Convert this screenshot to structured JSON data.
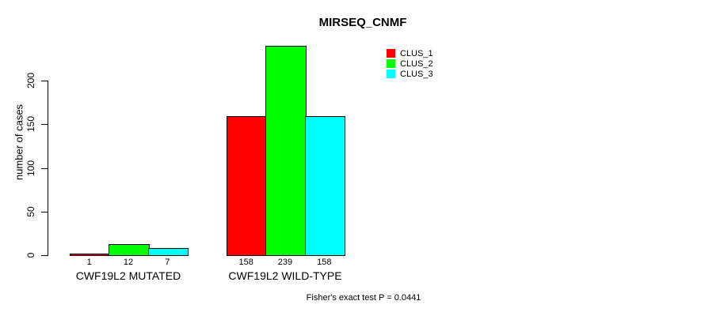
{
  "chart_data": {
    "type": "bar",
    "title": "MIRSEQ_CNMF",
    "xlabel": "",
    "ylabel": "number of cases",
    "categories": [
      "CWF19L2 MUTATED",
      "CWF19L2 WILD-TYPE"
    ],
    "series": [
      {
        "name": "CLUS_1",
        "color": "#ff0000",
        "values": [
          1,
          158
        ]
      },
      {
        "name": "CLUS_2",
        "color": "#00ff00",
        "values": [
          12,
          239
        ]
      },
      {
        "name": "CLUS_3",
        "color": "#00ffff",
        "values": [
          7,
          158
        ]
      }
    ],
    "bar_value_labels": [
      [
        1,
        12,
        7
      ],
      [
        158,
        239,
        158
      ]
    ],
    "yticks": [
      0,
      50,
      100,
      150,
      200
    ],
    "ylim": [
      0,
      245
    ],
    "grid": false,
    "legend_position": "top-right",
    "annotation": "Fisher's exact test P = 0.0441",
    "axis_color": "#000000",
    "background_color": "#ffffff"
  }
}
